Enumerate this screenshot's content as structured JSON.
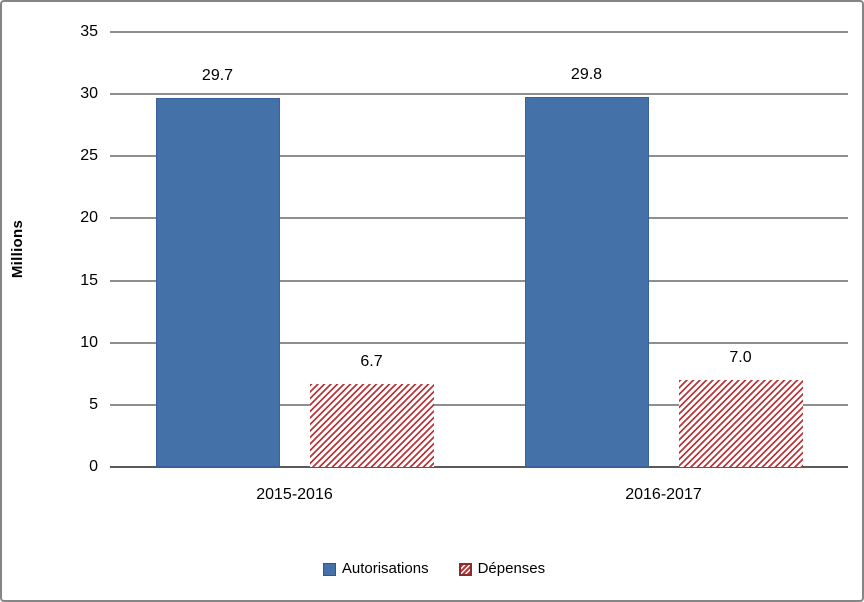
{
  "frame": {
    "background": "#ffffff",
    "border_color": "#858585"
  },
  "chart_data": {
    "type": "bar",
    "title": "",
    "categories": [
      "2015-2016",
      "2016-2017"
    ],
    "series": [
      {
        "name": "Autorisations",
        "values": [
          29.7,
          29.8
        ],
        "labels": [
          "29.7",
          "29.8"
        ],
        "color": "#4472a8",
        "fill": "solid"
      },
      {
        "name": "Dépenses",
        "values": [
          6.7,
          7.0
        ],
        "labels": [
          "6.7",
          "7.0"
        ],
        "color": "#b9383c",
        "fill": "diagonal-hatch",
        "hatch_background": "#ffffff"
      }
    ],
    "xlabel": "",
    "ylabel": "Millions",
    "ylim": [
      0,
      35
    ],
    "yticks": [
      0,
      5,
      10,
      15,
      20,
      25,
      30,
      35
    ],
    "ytick_labels": [
      "0",
      "5",
      "10",
      "15",
      "20",
      "25",
      "30",
      "35"
    ],
    "grid": true,
    "gridline_color": "#8e8e8e",
    "axis_line_color": "#5a5a5a",
    "legend_position": "bottom",
    "data_labels": true
  }
}
